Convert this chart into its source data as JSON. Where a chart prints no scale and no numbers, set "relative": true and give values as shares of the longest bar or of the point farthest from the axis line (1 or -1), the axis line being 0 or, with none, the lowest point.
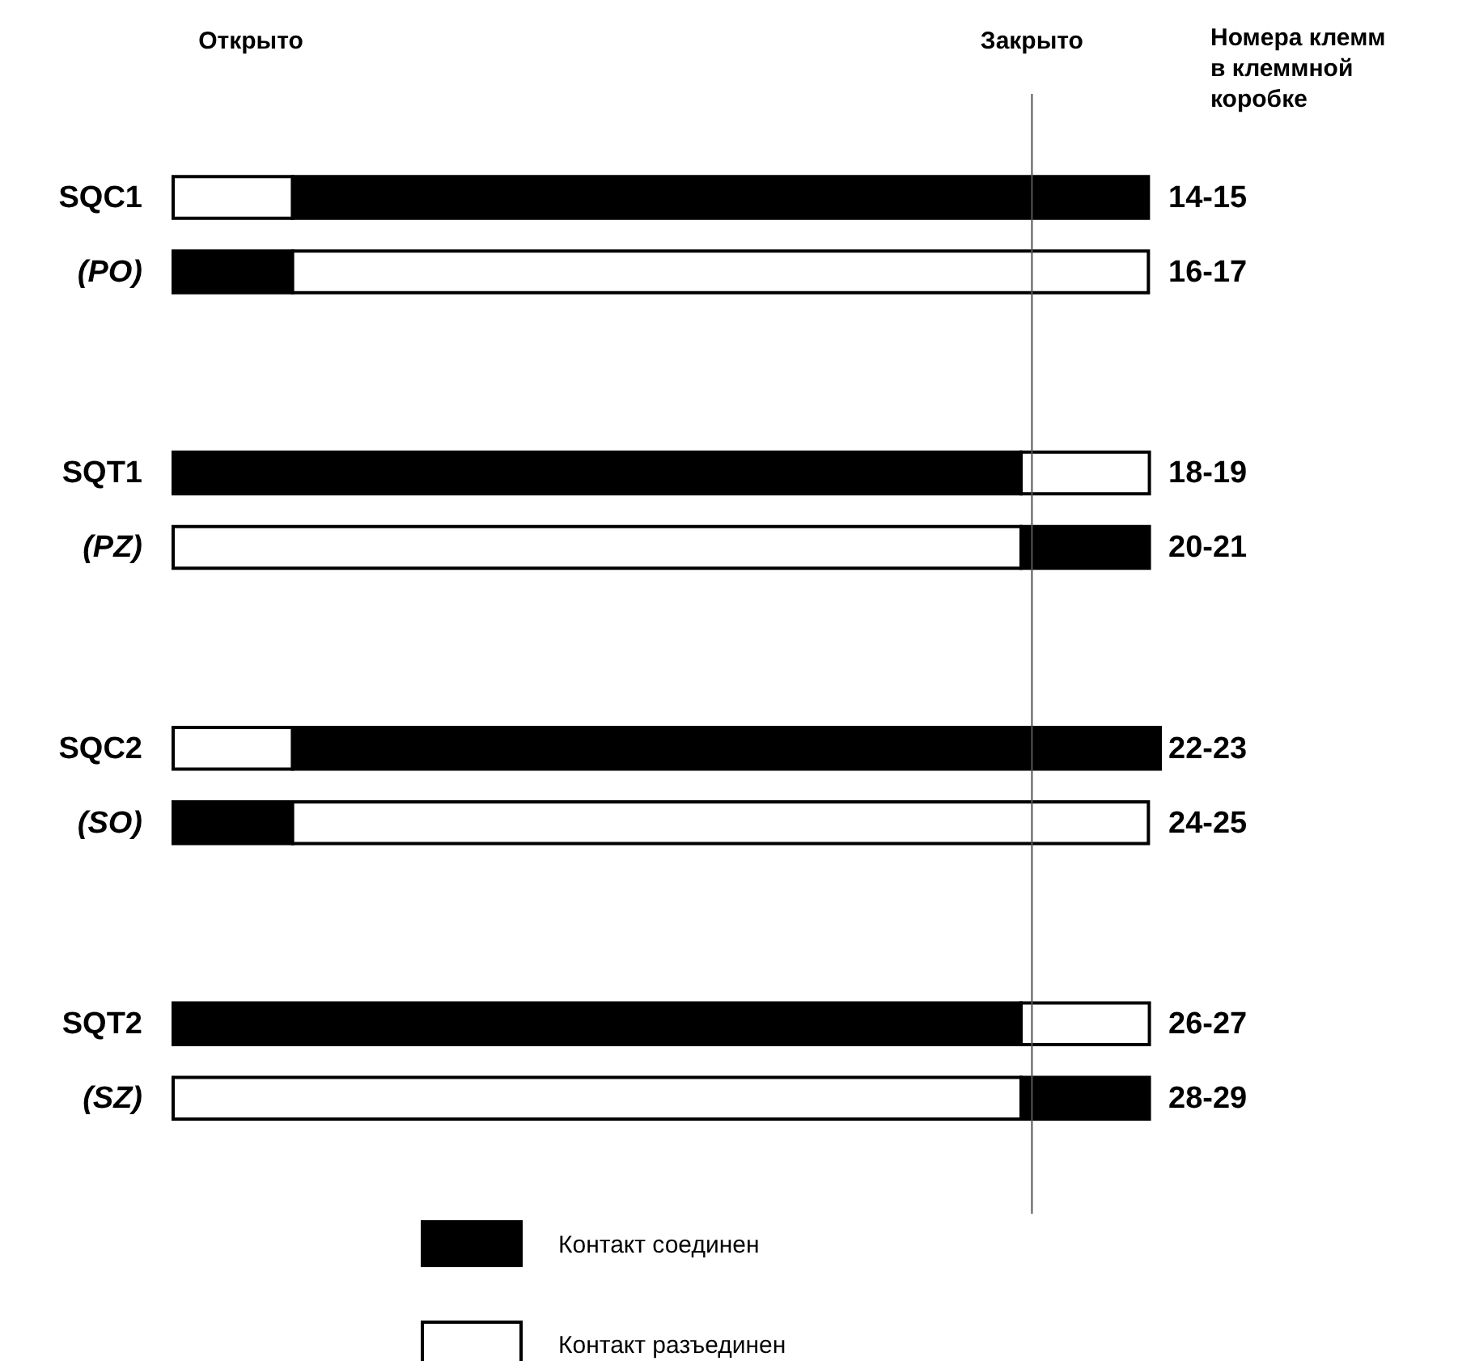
{
  "chart_data": {
    "type": "bar",
    "orientation": "horizontal",
    "stacked": true,
    "relative": true,
    "legend": "bottom",
    "categories": [
      "SQC1",
      "(PO)",
      "SQT1",
      "(PZ)",
      "SQC2",
      "(SO)",
      "SQT2",
      "(SZ)"
    ],
    "series": [
      {
        "name": "Контакт соединен",
        "color": "#000000",
        "values": [
          null,
          0.121,
          0.859,
          null,
          null,
          0.121,
          0.859,
          null
        ]
      },
      {
        "name": "Контакт разъединен",
        "color": "#ffffff",
        "values": [
          0.121,
          null,
          null,
          0.859,
          0.121,
          null,
          null,
          0.859
        ]
      },
      {
        "color": "#000000",
        "values": [
          0.867,
          null,
          null,
          0.13,
          0.879,
          null,
          null,
          0.13
        ]
      },
      {
        "color": "#ffffff",
        "values": [
          null,
          0.867,
          0.13,
          null,
          null,
          0.867,
          0.13,
          null
        ]
      }
    ],
    "ref_lines": [
      {
        "axis": "x",
        "value": 0.87,
        "label": "Закрыто",
        "color": "#555555"
      }
    ],
    "annotations": [
      "Открыто",
      "Номера клемм\nв клеммной\nкоробке",
      "14-15",
      "16-17",
      "18-19",
      "20-21",
      "22-23",
      "24-25",
      "26-27",
      "28-29"
    ]
  }
}
